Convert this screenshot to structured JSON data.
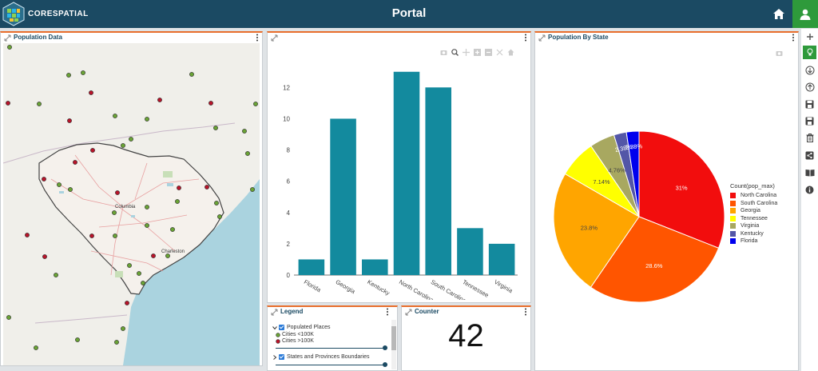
{
  "header": {
    "brand": "CORESPATIAL",
    "title": "Portal"
  },
  "panels": {
    "map": {
      "title": "Population Data"
    },
    "bar": {
      "title": ""
    },
    "pie": {
      "title": "Population By State"
    },
    "legend": {
      "title": "Legend"
    },
    "counter": {
      "title": "Counter"
    }
  },
  "map": {
    "labels": {
      "columbia": "Columbia",
      "charleston": "Charleston"
    }
  },
  "legend": {
    "layer1": "Populated Places",
    "item1": "Cities <100K",
    "item2": "Cities >100K",
    "layer2": "States and Provinces Boundaries",
    "colors": {
      "small": "#6aa336",
      "large": "#b8142a"
    }
  },
  "counter": {
    "value": "42"
  },
  "chart_data": [
    {
      "type": "bar",
      "categories": [
        "Florida",
        "Georgia",
        "Kentucky",
        "North Carolina",
        "South Carolina",
        "Tennessee",
        "Virginia"
      ],
      "values": [
        1,
        10,
        1,
        13,
        12,
        3,
        2
      ],
      "yticks": [
        0,
        2,
        4,
        6,
        8,
        10,
        12
      ],
      "ylim": [
        0,
        13.5
      ],
      "color": "#138a9e",
      "grid": false
    },
    {
      "type": "pie",
      "legend_title": "Count(pop_max)",
      "slices": [
        {
          "name": "North Carolina",
          "value": 31,
          "label": "31%",
          "color": "#f20d0d"
        },
        {
          "name": "South Carolina",
          "value": 28.6,
          "label": "28.6%",
          "color": "#ff5500"
        },
        {
          "name": "Georgia",
          "value": 23.8,
          "label": "23.8%",
          "color": "#ffa500"
        },
        {
          "name": "Tennessee",
          "value": 7.14,
          "label": "7.14%",
          "color": "#ffff00"
        },
        {
          "name": "Virginia",
          "value": 4.76,
          "label": "4.76%",
          "color": "#a8a860"
        },
        {
          "name": "Kentucky",
          "value": 2.38,
          "label": "2.38%",
          "color": "#5356a7"
        },
        {
          "name": "Florida",
          "value": 2.38,
          "label": "2.38%",
          "color": "#0000ee"
        }
      ],
      "legend_placement": "right"
    }
  ]
}
